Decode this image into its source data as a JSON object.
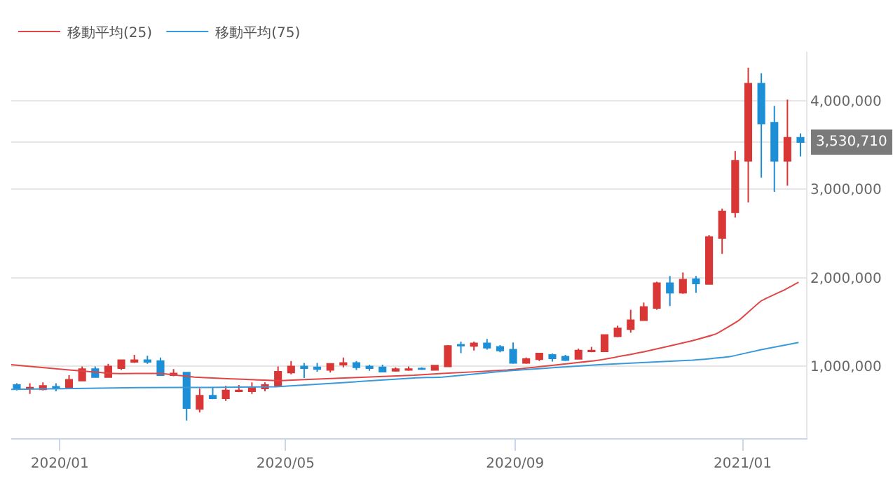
{
  "chart_data": {
    "type": "candlestick",
    "x": [
      "2019-12-09",
      "2019-12-16",
      "2019-12-23",
      "2019-12-30",
      "2020-01-06",
      "2020-01-13",
      "2020-01-20",
      "2020-01-27",
      "2020-02-03",
      "2020-02-10",
      "2020-02-17",
      "2020-02-24",
      "2020-03-02",
      "2020-03-09",
      "2020-03-16",
      "2020-03-23",
      "2020-03-30",
      "2020-04-06",
      "2020-04-13",
      "2020-04-20",
      "2020-04-27",
      "2020-05-04",
      "2020-05-11",
      "2020-05-18",
      "2020-05-25",
      "2020-06-01",
      "2020-06-08",
      "2020-06-15",
      "2020-06-22",
      "2020-06-29",
      "2020-07-06",
      "2020-07-13",
      "2020-07-20",
      "2020-07-27",
      "2020-08-03",
      "2020-08-10",
      "2020-08-17",
      "2020-08-24",
      "2020-08-31",
      "2020-09-07",
      "2020-09-14",
      "2020-09-21",
      "2020-09-28",
      "2020-10-05",
      "2020-10-12",
      "2020-10-19",
      "2020-10-26",
      "2020-11-02",
      "2020-11-09",
      "2020-11-16",
      "2020-11-23",
      "2020-11-30",
      "2020-12-07",
      "2020-12-14",
      "2020-12-21",
      "2020-12-28",
      "2021-01-04",
      "2021-01-11",
      "2021-01-18",
      "2021-01-25",
      "2021-02-01"
    ],
    "ohlc": [
      [
        790000,
        810000,
        730000,
        750000
      ],
      [
        750000,
        810000,
        690000,
        760000
      ],
      [
        740000,
        820000,
        730000,
        780000
      ],
      [
        770000,
        810000,
        720000,
        760000
      ],
      [
        760000,
        900000,
        760000,
        850000
      ],
      [
        840000,
        1000000,
        840000,
        970000
      ],
      [
        970000,
        1000000,
        880000,
        880000
      ],
      [
        880000,
        1030000,
        880000,
        1000000
      ],
      [
        980000,
        1070000,
        960000,
        1070000
      ],
      [
        1050000,
        1130000,
        1040000,
        1070000
      ],
      [
        1070000,
        1120000,
        1030000,
        1050000
      ],
      [
        1060000,
        1100000,
        900000,
        900000
      ],
      [
        900000,
        970000,
        890000,
        920000
      ],
      [
        930000,
        930000,
        390000,
        530000
      ],
      [
        520000,
        750000,
        480000,
        670000
      ],
      [
        670000,
        760000,
        630000,
        640000
      ],
      [
        640000,
        780000,
        610000,
        730000
      ],
      [
        720000,
        790000,
        710000,
        730000
      ],
      [
        720000,
        820000,
        690000,
        760000
      ],
      [
        750000,
        820000,
        720000,
        790000
      ],
      [
        780000,
        1000000,
        780000,
        940000
      ],
      [
        930000,
        1060000,
        910000,
        1000000
      ],
      [
        1000000,
        1040000,
        870000,
        980000
      ],
      [
        990000,
        1040000,
        940000,
        970000
      ],
      [
        960000,
        1030000,
        930000,
        1030000
      ],
      [
        1020000,
        1100000,
        990000,
        1040000
      ],
      [
        1040000,
        1060000,
        960000,
        990000
      ],
      [
        1000000,
        1020000,
        950000,
        980000
      ],
      [
        990000,
        1020000,
        940000,
        940000
      ],
      [
        950000,
        990000,
        940000,
        970000
      ],
      [
        960000,
        1000000,
        950000,
        970000
      ],
      [
        975000,
        990000,
        960000,
        970000
      ],
      [
        960000,
        1010000,
        960000,
        1010000
      ],
      [
        1000000,
        1240000,
        1000000,
        1230000
      ],
      [
        1245000,
        1280000,
        1150000,
        1235000
      ],
      [
        1230000,
        1280000,
        1180000,
        1260000
      ],
      [
        1260000,
        1310000,
        1190000,
        1210000
      ],
      [
        1220000,
        1240000,
        1160000,
        1180000
      ],
      [
        1190000,
        1270000,
        1030000,
        1040000
      ],
      [
        1040000,
        1100000,
        1030000,
        1085000
      ],
      [
        1080000,
        1150000,
        1060000,
        1145000
      ],
      [
        1130000,
        1145000,
        1055000,
        1090000
      ],
      [
        1110000,
        1130000,
        1060000,
        1070000
      ],
      [
        1085000,
        1200000,
        1085000,
        1180000
      ],
      [
        1170000,
        1220000,
        1160000,
        1180000
      ],
      [
        1170000,
        1360000,
        1170000,
        1355000
      ],
      [
        1340000,
        1460000,
        1330000,
        1430000
      ],
      [
        1420000,
        1640000,
        1380000,
        1520000
      ],
      [
        1520000,
        1720000,
        1520000,
        1670000
      ],
      [
        1660000,
        1955000,
        1640000,
        1940000
      ],
      [
        1940000,
        2020000,
        1680000,
        1830000
      ],
      [
        1830000,
        2060000,
        1820000,
        1980000
      ],
      [
        1985000,
        2020000,
        1830000,
        1935000
      ],
      [
        1930000,
        2480000,
        1930000,
        2460000
      ],
      [
        2450000,
        2780000,
        2270000,
        2750000
      ],
      [
        2740000,
        3430000,
        2680000,
        3320000
      ],
      [
        3320000,
        4370000,
        2850000,
        4190000
      ],
      [
        4190000,
        4310000,
        3130000,
        3740000
      ],
      [
        3750000,
        3940000,
        2970000,
        3320000
      ],
      [
        3320000,
        4010000,
        3040000,
        3580000
      ],
      [
        3580000,
        3630000,
        3370000,
        3530710
      ]
    ],
    "colors": [
      "#1c8fd6",
      "#d93636",
      "#d93636",
      "#1c8fd6",
      "#d93636",
      "#d93636",
      "#1c8fd6",
      "#d93636",
      "#d93636",
      "#d93636",
      "#1c8fd6",
      "#1c8fd6",
      "#d93636",
      "#1c8fd6",
      "#d93636",
      "#1c8fd6",
      "#d93636",
      "#d93636",
      "#d93636",
      "#d93636",
      "#d93636",
      "#d93636",
      "#1c8fd6",
      "#1c8fd6",
      "#d93636",
      "#d93636",
      "#1c8fd6",
      "#1c8fd6",
      "#1c8fd6",
      "#d93636",
      "#d93636",
      "#1c8fd6",
      "#d93636",
      "#d93636",
      "#1c8fd6",
      "#d93636",
      "#1c8fd6",
      "#1c8fd6",
      "#1c8fd6",
      "#d93636",
      "#d93636",
      "#1c8fd6",
      "#1c8fd6",
      "#d93636",
      "#d93636",
      "#d93636",
      "#d93636",
      "#d93636",
      "#d93636",
      "#d93636",
      "#1c8fd6",
      "#d93636",
      "#1c8fd6",
      "#d93636",
      "#d93636",
      "#d93636",
      "#d93636",
      "#1c8fd6",
      "#1c8fd6",
      "#d93636",
      "#1c8fd6"
    ],
    "series": [
      {
        "name": "移動平均(25)",
        "type": "line",
        "color": "#e04646",
        "x": [
          "2019-12-06",
          "2020-01-06",
          "2020-01-30",
          "2020-02-24",
          "2020-03-13",
          "2020-04-02",
          "2020-04-26",
          "2020-05-09",
          "2020-07-09",
          "2020-07-24",
          "2020-08-28",
          "2020-10-16",
          "2020-11-10",
          "2020-12-05",
          "2020-12-18",
          "2020-12-30",
          "2021-01-11",
          "2021-01-24",
          "2021-01-31"
        ],
        "values": [
          1020000,
          960000,
          920000,
          920000,
          880000,
          860000,
          840000,
          850000,
          900000,
          920000,
          960000,
          1070000,
          1170000,
          1290000,
          1370000,
          1520000,
          1740000,
          1870000,
          1950000
        ]
      },
      {
        "name": "移動平均(75)",
        "type": "line",
        "color": "#3a9ad9",
        "x": [
          "2019-12-06",
          "2020-02-12",
          "2020-04-26",
          "2020-07-09",
          "2020-07-24",
          "2020-08-28",
          "2020-10-16",
          "2020-12-05",
          "2020-12-25",
          "2021-01-11",
          "2021-01-31"
        ],
        "values": [
          740000,
          760000,
          770000,
          870000,
          880000,
          950000,
          1020000,
          1070000,
          1110000,
          1190000,
          1270000
        ]
      }
    ],
    "xlim": [
      "2019-12-06",
      "2021-02-04"
    ],
    "xticks": [
      {
        "value": "2020-01-01",
        "label": "2020/01"
      },
      {
        "value": "2020-05-01",
        "label": "2020/05"
      },
      {
        "value": "2020-09-01",
        "label": "2020/09"
      },
      {
        "value": "2021-01-01",
        "label": "2021/01"
      }
    ],
    "yticks": [
      {
        "value": 1000000,
        "label": "1,000,000"
      },
      {
        "value": 2000000,
        "label": "2,000,000"
      },
      {
        "value": 3000000,
        "label": "3,000,000"
      },
      {
        "value": 4000000,
        "label": "4,000,000"
      }
    ],
    "ylim": [
      190000,
      4550000
    ],
    "ref_lines": [
      {
        "axis": "y",
        "value": 3530710,
        "label": "3,530,710",
        "color": "#e6e6e6"
      }
    ],
    "grid": "y",
    "legend": "top left",
    "marker": "none",
    "line_style": "solid"
  }
}
